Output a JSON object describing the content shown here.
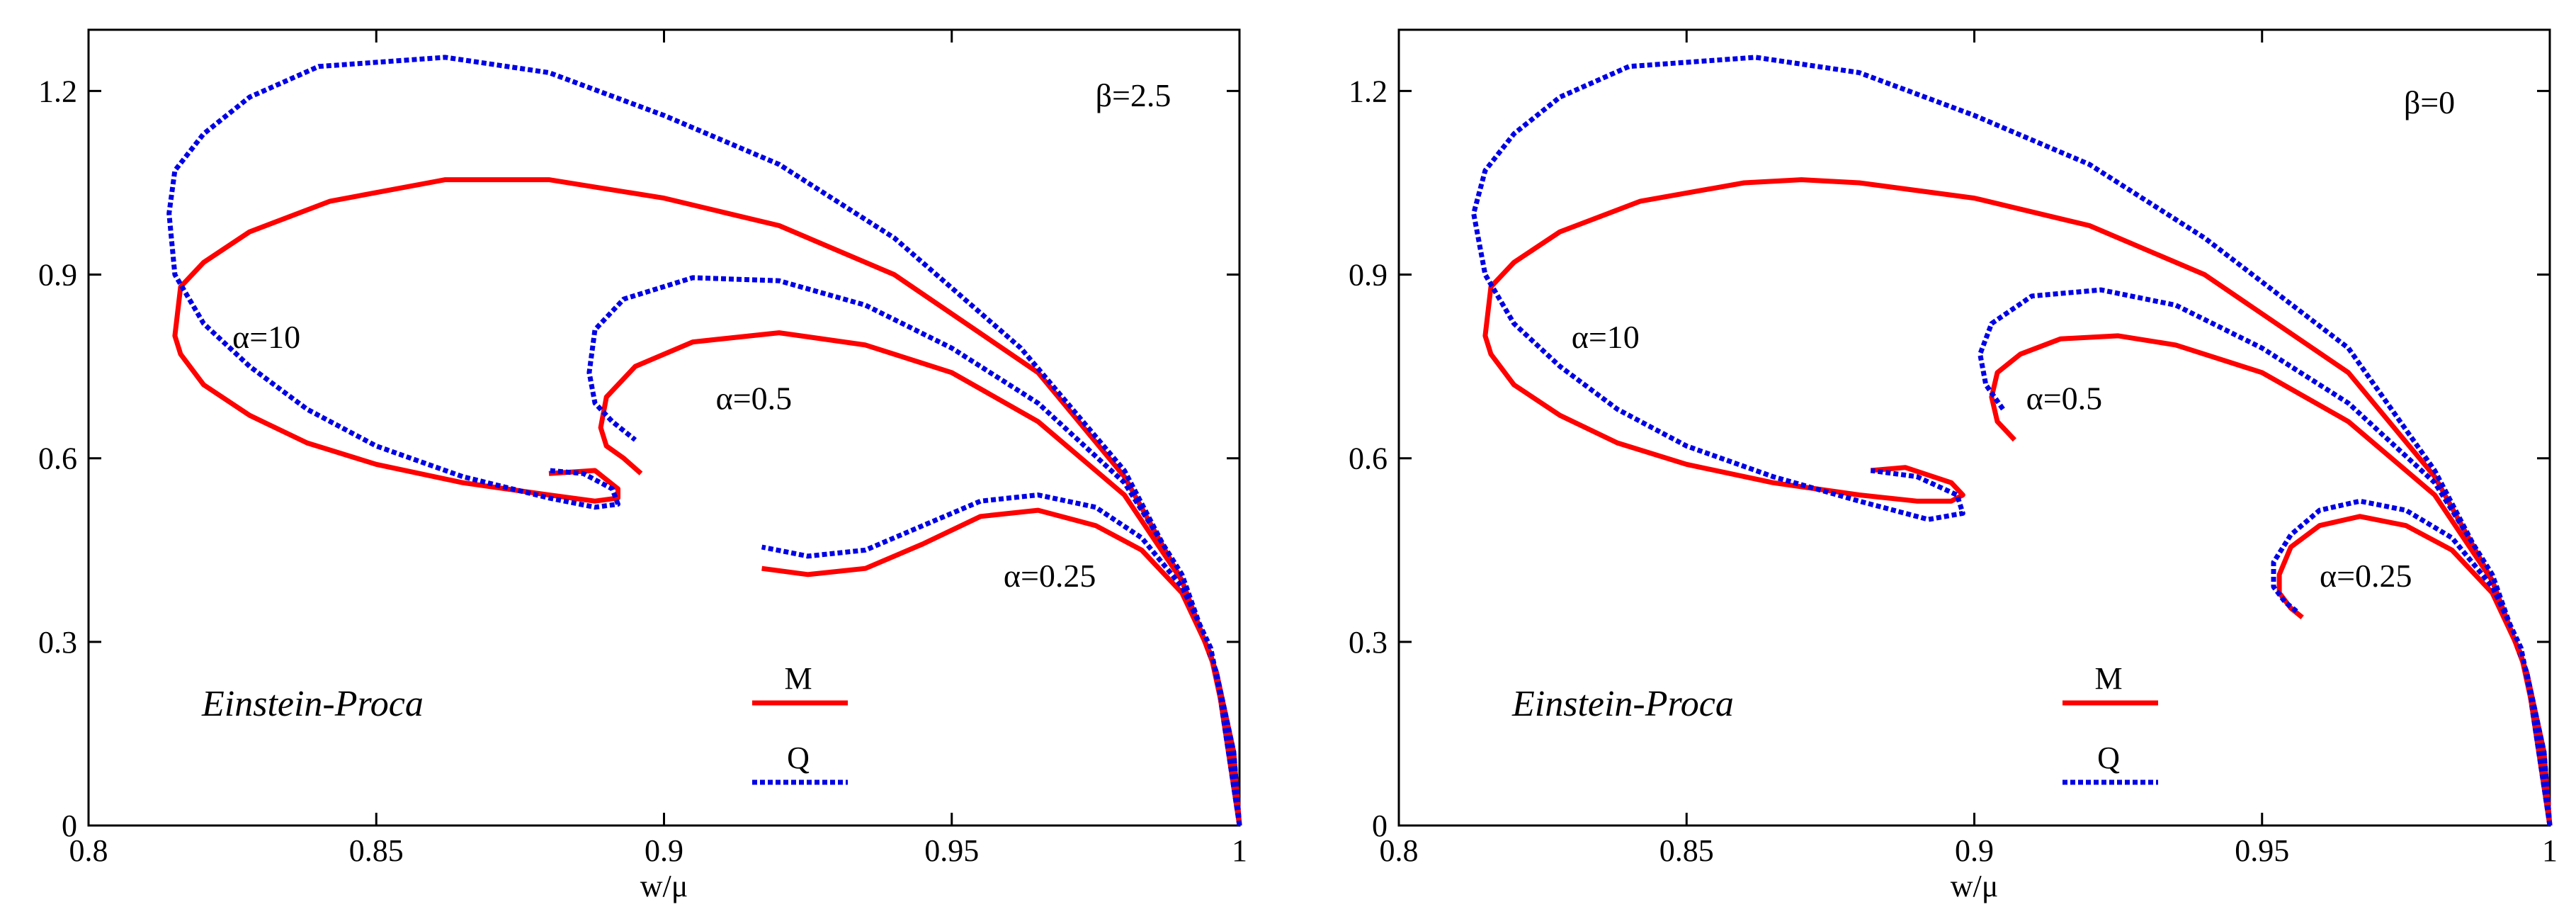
{
  "chart_data": [
    {
      "type": "line",
      "xlabel": "w/μ",
      "ylabel": "",
      "xlim": [
        0.8,
        1.0
      ],
      "ylim": [
        0,
        1.3
      ],
      "xticks": [
        "0.8",
        "0.85",
        "0.9",
        "0.95",
        "1"
      ],
      "yticks": [
        "0",
        "0.3",
        "0.6",
        "0.9",
        "1.2"
      ],
      "xtick_values": [
        0.8,
        0.85,
        0.9,
        0.95,
        1.0
      ],
      "ytick_values": [
        0,
        0.3,
        0.6,
        0.9,
        1.2
      ],
      "param_label": "β=2.5",
      "model_label": "Einstein-Proca",
      "legend": [
        {
          "name": "M",
          "style": "solid",
          "color": "#ff0000"
        },
        {
          "name": "Q",
          "style": "dashed",
          "color": "#0000e6"
        }
      ],
      "annotations": [
        {
          "text": "α=10",
          "x": 0.825,
          "y": 0.78
        },
        {
          "text": "α=0.5",
          "x": 0.909,
          "y": 0.68
        },
        {
          "text": "α=0.25",
          "x": 0.959,
          "y": 0.39
        }
      ],
      "series": [
        {
          "name": "M",
          "alpha": "10",
          "x": [
            1.0,
            0.999,
            0.996,
            0.99,
            0.98,
            0.965,
            0.94,
            0.92,
            0.9,
            0.88,
            0.862,
            0.842,
            0.828,
            0.82,
            0.816,
            0.815,
            0.816,
            0.82,
            0.828,
            0.838,
            0.85,
            0.865,
            0.88,
            0.888,
            0.892,
            0.892,
            0.888,
            0.88
          ],
          "y": [
            0.0,
            0.12,
            0.25,
            0.4,
            0.57,
            0.74,
            0.9,
            0.98,
            1.025,
            1.055,
            1.055,
            1.02,
            0.97,
            0.92,
            0.88,
            0.8,
            0.77,
            0.72,
            0.67,
            0.625,
            0.59,
            0.56,
            0.54,
            0.53,
            0.535,
            0.55,
            0.58,
            0.575
          ]
        },
        {
          "name": "Q",
          "alpha": "10",
          "x": [
            1.0,
            0.999,
            0.996,
            0.99,
            0.98,
            0.962,
            0.94,
            0.92,
            0.9,
            0.88,
            0.862,
            0.84,
            0.828,
            0.82,
            0.815,
            0.814,
            0.815,
            0.82,
            0.828,
            0.838,
            0.85,
            0.865,
            0.88,
            0.888,
            0.892,
            0.891,
            0.886,
            0.88
          ],
          "y": [
            0.0,
            0.12,
            0.25,
            0.4,
            0.58,
            0.78,
            0.96,
            1.08,
            1.16,
            1.23,
            1.255,
            1.24,
            1.19,
            1.13,
            1.07,
            1.0,
            0.9,
            0.82,
            0.75,
            0.68,
            0.62,
            0.57,
            0.535,
            0.52,
            0.525,
            0.55,
            0.575,
            0.58
          ]
        },
        {
          "name": "M",
          "alpha": "0.5",
          "x": [
            1.0,
            0.996,
            0.99,
            0.98,
            0.965,
            0.95,
            0.935,
            0.92,
            0.905,
            0.895,
            0.89,
            0.889,
            0.89,
            0.893,
            0.896
          ],
          "y": [
            0.0,
            0.25,
            0.4,
            0.54,
            0.66,
            0.74,
            0.785,
            0.805,
            0.79,
            0.75,
            0.7,
            0.65,
            0.62,
            0.6,
            0.575
          ]
        },
        {
          "name": "Q",
          "alpha": "0.5",
          "x": [
            1.0,
            0.996,
            0.99,
            0.98,
            0.965,
            0.95,
            0.935,
            0.92,
            0.905,
            0.893,
            0.888,
            0.887,
            0.888,
            0.891,
            0.895
          ],
          "y": [
            0.0,
            0.25,
            0.41,
            0.56,
            0.69,
            0.78,
            0.85,
            0.89,
            0.895,
            0.86,
            0.81,
            0.74,
            0.69,
            0.66,
            0.63
          ]
        },
        {
          "name": "M",
          "alpha": "0.25",
          "x": [
            1.0,
            0.998,
            0.995,
            0.99,
            0.983,
            0.975,
            0.965,
            0.955,
            0.945,
            0.935,
            0.925,
            0.917
          ],
          "y": [
            0.0,
            0.15,
            0.28,
            0.38,
            0.45,
            0.49,
            0.515,
            0.505,
            0.46,
            0.42,
            0.41,
            0.42
          ]
        },
        {
          "name": "Q",
          "alpha": "0.25",
          "x": [
            1.0,
            0.998,
            0.995,
            0.99,
            0.983,
            0.975,
            0.965,
            0.955,
            0.945,
            0.935,
            0.925,
            0.917
          ],
          "y": [
            0.0,
            0.15,
            0.29,
            0.39,
            0.47,
            0.52,
            0.54,
            0.53,
            0.49,
            0.45,
            0.44,
            0.455
          ]
        }
      ]
    },
    {
      "type": "line",
      "xlabel": "w/μ",
      "ylabel": "",
      "xlim": [
        0.8,
        1.0
      ],
      "ylim": [
        0,
        1.3
      ],
      "xticks": [
        "0.8",
        "0.85",
        "0.9",
        "0.95",
        "1"
      ],
      "yticks": [
        "0",
        "0.3",
        "0.6",
        "0.9",
        "1.2"
      ],
      "xtick_values": [
        0.8,
        0.85,
        0.9,
        0.95,
        1.0
      ],
      "ytick_values": [
        0,
        0.3,
        0.6,
        0.9,
        1.2
      ],
      "param_label": "β=0",
      "model_label": "Einstein-Proca",
      "legend": [
        {
          "name": "M",
          "style": "solid",
          "color": "#ff0000"
        },
        {
          "name": "Q",
          "style": "dashed",
          "color": "#0000e6"
        }
      ],
      "annotations": [
        {
          "text": "α=10",
          "x": 0.83,
          "y": 0.78
        },
        {
          "text": "α=0.5",
          "x": 0.909,
          "y": 0.68
        },
        {
          "text": "α=0.25",
          "x": 0.96,
          "y": 0.39
        }
      ],
      "series": [
        {
          "name": "M",
          "alpha": "10",
          "x": [
            1.0,
            0.999,
            0.996,
            0.99,
            0.98,
            0.965,
            0.94,
            0.92,
            0.9,
            0.88,
            0.87,
            0.86,
            0.842,
            0.828,
            0.82,
            0.816,
            0.815,
            0.816,
            0.82,
            0.828,
            0.838,
            0.85,
            0.865,
            0.88,
            0.89,
            0.896,
            0.898,
            0.896,
            0.888,
            0.882
          ],
          "y": [
            0.0,
            0.12,
            0.25,
            0.4,
            0.57,
            0.74,
            0.9,
            0.98,
            1.025,
            1.05,
            1.055,
            1.05,
            1.02,
            0.97,
            0.92,
            0.88,
            0.8,
            0.77,
            0.72,
            0.67,
            0.625,
            0.59,
            0.56,
            0.54,
            0.53,
            0.53,
            0.54,
            0.56,
            0.585,
            0.58
          ]
        },
        {
          "name": "Q",
          "alpha": "10",
          "x": [
            1.0,
            0.999,
            0.996,
            0.99,
            0.98,
            0.965,
            0.94,
            0.92,
            0.9,
            0.88,
            0.862,
            0.84,
            0.828,
            0.82,
            0.815,
            0.813,
            0.815,
            0.82,
            0.828,
            0.838,
            0.85,
            0.865,
            0.88,
            0.892,
            0.898,
            0.897,
            0.89,
            0.882
          ],
          "y": [
            0.0,
            0.12,
            0.25,
            0.4,
            0.58,
            0.78,
            0.96,
            1.08,
            1.16,
            1.23,
            1.255,
            1.24,
            1.19,
            1.13,
            1.07,
            1.0,
            0.9,
            0.82,
            0.75,
            0.68,
            0.62,
            0.57,
            0.53,
            0.5,
            0.51,
            0.54,
            0.57,
            0.58
          ]
        },
        {
          "name": "M",
          "alpha": "0.5",
          "x": [
            1.0,
            0.996,
            0.99,
            0.98,
            0.965,
            0.95,
            0.935,
            0.925,
            0.915,
            0.908,
            0.904,
            0.903,
            0.904,
            0.907
          ],
          "y": [
            0.0,
            0.25,
            0.4,
            0.54,
            0.66,
            0.74,
            0.785,
            0.8,
            0.795,
            0.77,
            0.74,
            0.7,
            0.66,
            0.63
          ]
        },
        {
          "name": "Q",
          "alpha": "0.5",
          "x": [
            1.0,
            0.996,
            0.99,
            0.98,
            0.965,
            0.95,
            0.935,
            0.922,
            0.91,
            0.903,
            0.901,
            0.902,
            0.905
          ],
          "y": [
            0.0,
            0.25,
            0.41,
            0.56,
            0.69,
            0.78,
            0.85,
            0.875,
            0.865,
            0.82,
            0.77,
            0.72,
            0.68
          ]
        },
        {
          "name": "M",
          "alpha": "0.25",
          "x": [
            1.0,
            0.998,
            0.995,
            0.99,
            0.983,
            0.975,
            0.967,
            0.96,
            0.955,
            0.953,
            0.953,
            0.955,
            0.957
          ],
          "y": [
            0.0,
            0.15,
            0.28,
            0.38,
            0.45,
            0.49,
            0.505,
            0.49,
            0.455,
            0.41,
            0.38,
            0.355,
            0.34
          ]
        },
        {
          "name": "Q",
          "alpha": "0.25",
          "x": [
            1.0,
            0.998,
            0.995,
            0.99,
            0.983,
            0.975,
            0.967,
            0.96,
            0.955,
            0.952,
            0.952,
            0.954,
            0.956
          ],
          "y": [
            0.0,
            0.15,
            0.29,
            0.39,
            0.47,
            0.515,
            0.53,
            0.515,
            0.475,
            0.43,
            0.39,
            0.365,
            0.35
          ]
        }
      ]
    }
  ]
}
